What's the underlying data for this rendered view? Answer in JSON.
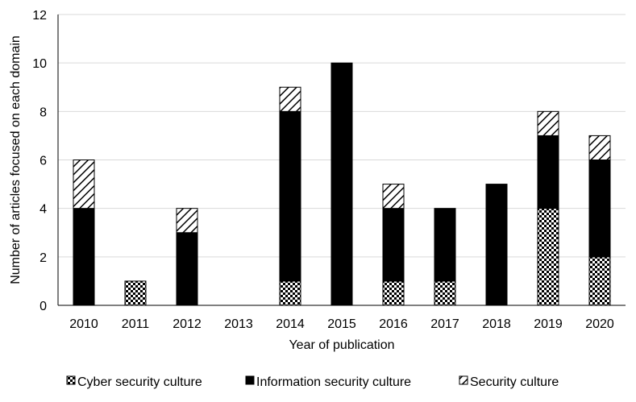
{
  "chart_data": {
    "type": "bar",
    "stacked": true,
    "categories": [
      "2010",
      "2011",
      "2012",
      "2013",
      "2014",
      "2015",
      "2016",
      "2017",
      "2018",
      "2019",
      "2020"
    ],
    "series": [
      {
        "name": "Cyber security culture",
        "pattern": "checker",
        "values": [
          0,
          1,
          0,
          0,
          1,
          0,
          1,
          1,
          0,
          4,
          2
        ]
      },
      {
        "name": "Information security culture",
        "pattern": "solid",
        "values": [
          4,
          0,
          3,
          0,
          7,
          10,
          3,
          3,
          5,
          3,
          4
        ]
      },
      {
        "name": "Security culture",
        "pattern": "hatch",
        "values": [
          2,
          0,
          1,
          0,
          1,
          0,
          1,
          0,
          0,
          1,
          1
        ]
      }
    ],
    "xlabel": "Year of publication",
    "ylabel": "Number of articles focused on each domain",
    "ylim": [
      0,
      12
    ],
    "yticks": [
      "0",
      "2",
      "4",
      "6",
      "8",
      "10",
      "12"
    ],
    "grid": true,
    "legend": "bottom",
    "colors": {
      "bar": "#000000",
      "grid": "#d9d9d9",
      "background": "#ffffff"
    }
  }
}
